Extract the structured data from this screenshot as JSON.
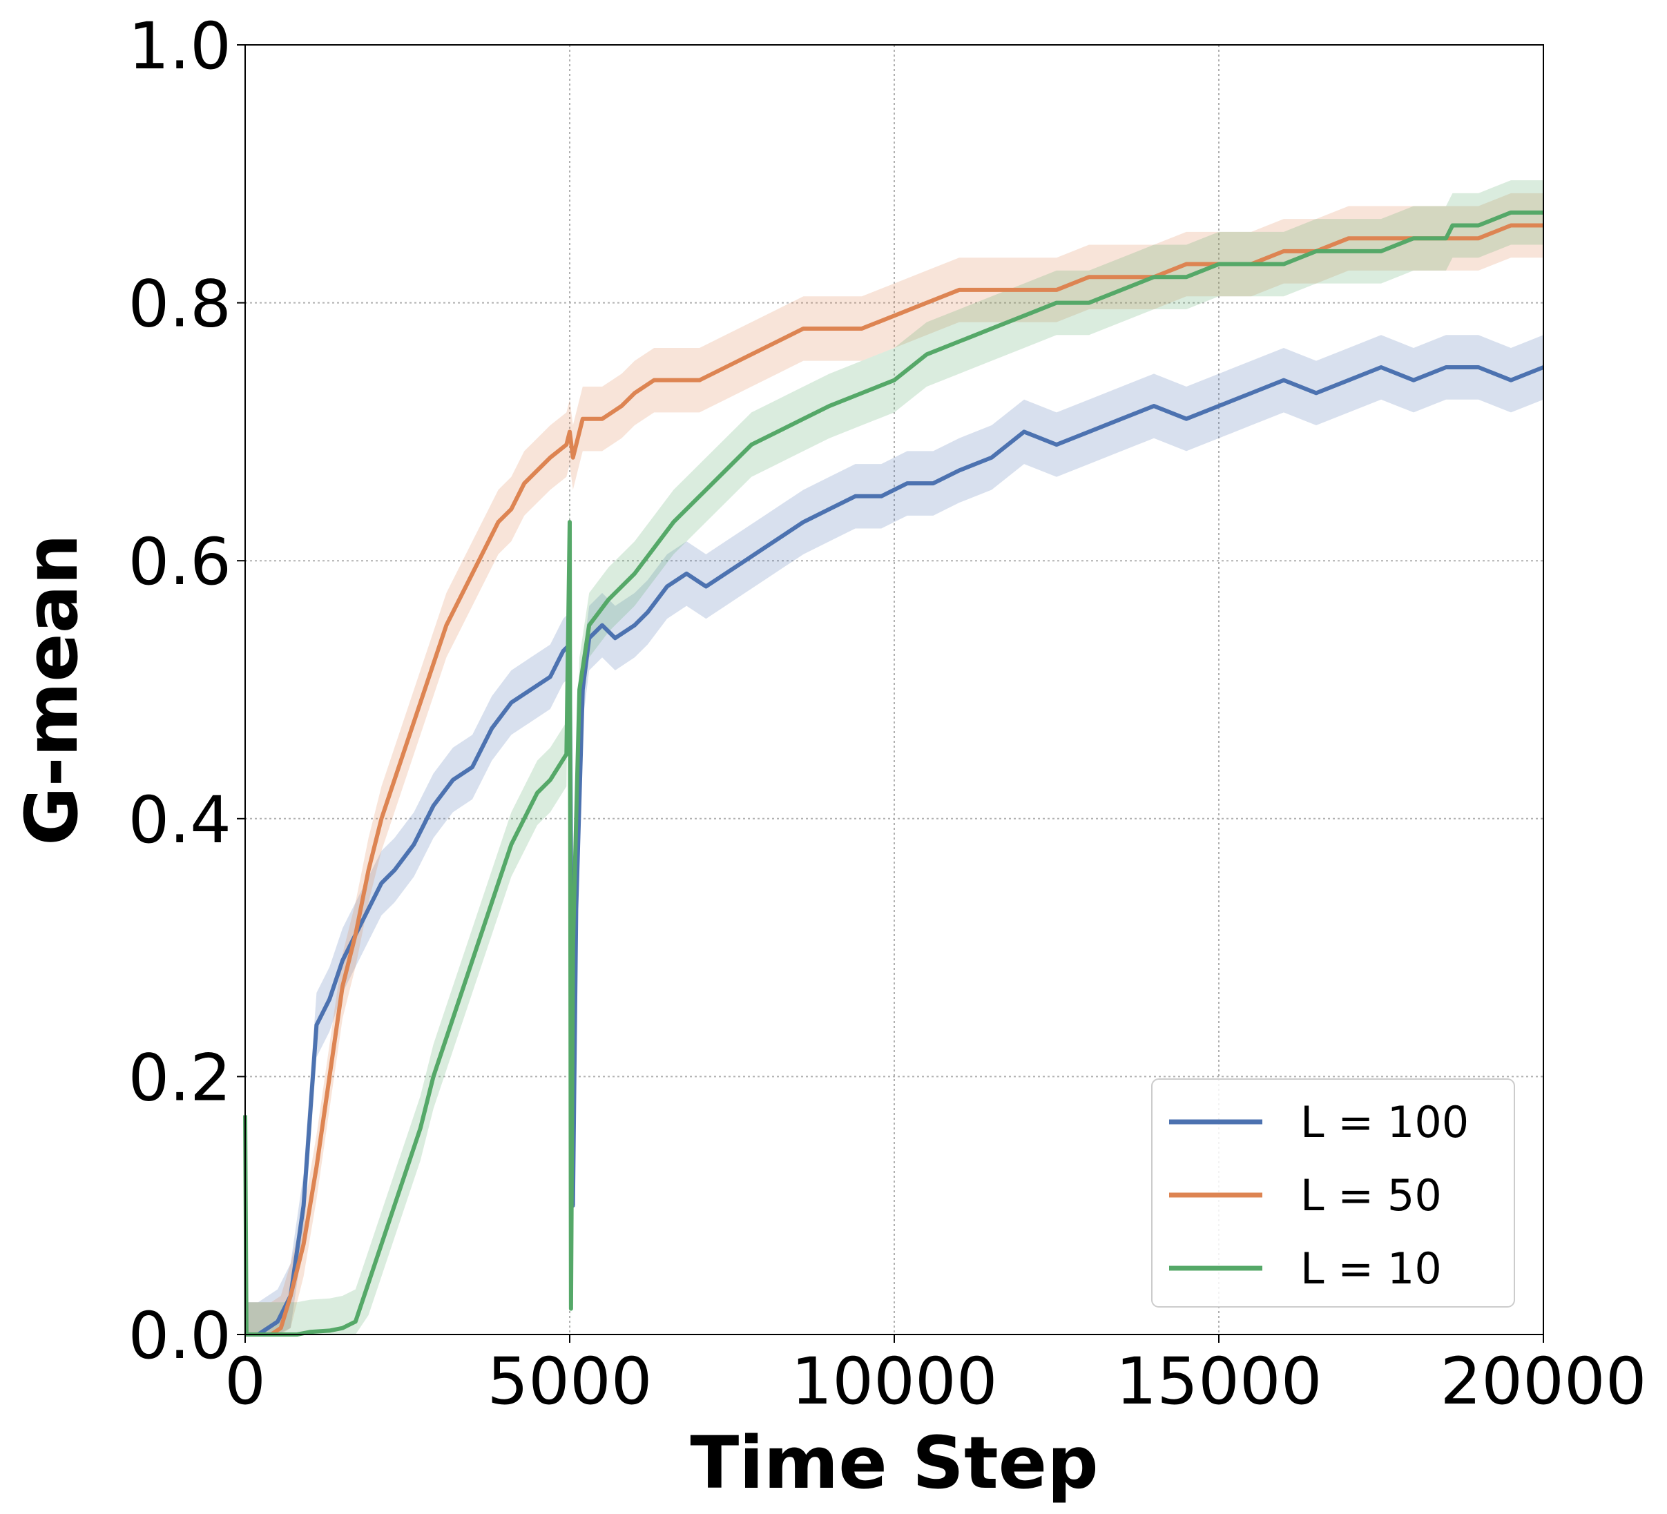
{
  "chart_data": {
    "type": "line",
    "xlabel": "Time Step",
    "ylabel": "G-mean",
    "xlim": [
      0,
      20000
    ],
    "ylim": [
      0,
      1.0
    ],
    "x_ticks": [
      "0",
      "5000",
      "10000",
      "15000",
      "20000"
    ],
    "y_ticks": [
      "0.0",
      "0.2",
      "0.4",
      "0.6",
      "0.8",
      "1.0"
    ],
    "grid": true,
    "legend_position": "bottom-right",
    "series": [
      {
        "name": "L = 100",
        "color": "#4c72b0",
        "band": 0.025,
        "points": [
          [
            0,
            0
          ],
          [
            200,
            0
          ],
          [
            500,
            0.01
          ],
          [
            700,
            0.03
          ],
          [
            900,
            0.1
          ],
          [
            1000,
            0.17
          ],
          [
            1100,
            0.24
          ],
          [
            1300,
            0.26
          ],
          [
            1500,
            0.29
          ],
          [
            1700,
            0.31
          ],
          [
            1900,
            0.33
          ],
          [
            2100,
            0.35
          ],
          [
            2300,
            0.36
          ],
          [
            2600,
            0.38
          ],
          [
            2900,
            0.41
          ],
          [
            3200,
            0.43
          ],
          [
            3500,
            0.44
          ],
          [
            3800,
            0.47
          ],
          [
            4100,
            0.49
          ],
          [
            4400,
            0.5
          ],
          [
            4700,
            0.51
          ],
          [
            4900,
            0.53
          ],
          [
            5000,
            0.535
          ],
          [
            5050,
            0.1
          ],
          [
            5100,
            0.33
          ],
          [
            5200,
            0.5
          ],
          [
            5300,
            0.54
          ],
          [
            5500,
            0.55
          ],
          [
            5700,
            0.54
          ],
          [
            6000,
            0.55
          ],
          [
            6200,
            0.56
          ],
          [
            6500,
            0.58
          ],
          [
            6800,
            0.59
          ],
          [
            7100,
            0.58
          ],
          [
            7400,
            0.59
          ],
          [
            7700,
            0.6
          ],
          [
            8000,
            0.61
          ],
          [
            8300,
            0.62
          ],
          [
            8600,
            0.63
          ],
          [
            9000,
            0.64
          ],
          [
            9400,
            0.65
          ],
          [
            9800,
            0.65
          ],
          [
            10200,
            0.66
          ],
          [
            10600,
            0.66
          ],
          [
            11000,
            0.67
          ],
          [
            11500,
            0.68
          ],
          [
            12000,
            0.7
          ],
          [
            12500,
            0.69
          ],
          [
            13000,
            0.7
          ],
          [
            13500,
            0.71
          ],
          [
            14000,
            0.72
          ],
          [
            14500,
            0.71
          ],
          [
            15000,
            0.72
          ],
          [
            15500,
            0.73
          ],
          [
            16000,
            0.74
          ],
          [
            16500,
            0.73
          ],
          [
            17000,
            0.74
          ],
          [
            17500,
            0.75
          ],
          [
            18000,
            0.74
          ],
          [
            18500,
            0.75
          ],
          [
            19000,
            0.75
          ],
          [
            19500,
            0.74
          ],
          [
            20000,
            0.75
          ]
        ]
      },
      {
        "name": "L = 50",
        "color": "#dd8452",
        "band": 0.025,
        "points": [
          [
            0,
            0
          ],
          [
            400,
            0
          ],
          [
            550,
            0.005
          ],
          [
            700,
            0.03
          ],
          [
            900,
            0.07
          ],
          [
            1100,
            0.13
          ],
          [
            1300,
            0.2
          ],
          [
            1500,
            0.27
          ],
          [
            1700,
            0.31
          ],
          [
            1900,
            0.36
          ],
          [
            2100,
            0.4
          ],
          [
            2300,
            0.43
          ],
          [
            2500,
            0.46
          ],
          [
            2700,
            0.49
          ],
          [
            2900,
            0.52
          ],
          [
            3100,
            0.55
          ],
          [
            3300,
            0.57
          ],
          [
            3500,
            0.59
          ],
          [
            3700,
            0.61
          ],
          [
            3900,
            0.63
          ],
          [
            4100,
            0.64
          ],
          [
            4300,
            0.66
          ],
          [
            4500,
            0.67
          ],
          [
            4700,
            0.68
          ],
          [
            4950,
            0.69
          ],
          [
            5000,
            0.7
          ],
          [
            5050,
            0.68
          ],
          [
            5200,
            0.71
          ],
          [
            5500,
            0.71
          ],
          [
            5800,
            0.72
          ],
          [
            6000,
            0.73
          ],
          [
            6300,
            0.74
          ],
          [
            6600,
            0.74
          ],
          [
            7000,
            0.74
          ],
          [
            7400,
            0.75
          ],
          [
            7800,
            0.76
          ],
          [
            8200,
            0.77
          ],
          [
            8600,
            0.78
          ],
          [
            9000,
            0.78
          ],
          [
            9500,
            0.78
          ],
          [
            10000,
            0.79
          ],
          [
            10500,
            0.8
          ],
          [
            11000,
            0.81
          ],
          [
            11500,
            0.81
          ],
          [
            12000,
            0.81
          ],
          [
            12500,
            0.81
          ],
          [
            13000,
            0.82
          ],
          [
            13500,
            0.82
          ],
          [
            14000,
            0.82
          ],
          [
            14500,
            0.83
          ],
          [
            15000,
            0.83
          ],
          [
            15500,
            0.83
          ],
          [
            16000,
            0.84
          ],
          [
            16500,
            0.84
          ],
          [
            17000,
            0.85
          ],
          [
            17500,
            0.85
          ],
          [
            18000,
            0.85
          ],
          [
            18500,
            0.85
          ],
          [
            19000,
            0.85
          ],
          [
            19500,
            0.86
          ],
          [
            20000,
            0.86
          ]
        ]
      },
      {
        "name": "L = 10",
        "color": "#55a868",
        "band": 0.025,
        "points": [
          [
            0,
            0.17
          ],
          [
            20,
            0
          ],
          [
            800,
            0
          ],
          [
            1000,
            0.002
          ],
          [
            1300,
            0.003
          ],
          [
            1500,
            0.005
          ],
          [
            1700,
            0.01
          ],
          [
            1900,
            0.04
          ],
          [
            2100,
            0.07
          ],
          [
            2300,
            0.1
          ],
          [
            2500,
            0.13
          ],
          [
            2700,
            0.16
          ],
          [
            2900,
            0.2
          ],
          [
            3100,
            0.23
          ],
          [
            3300,
            0.26
          ],
          [
            3500,
            0.29
          ],
          [
            3700,
            0.32
          ],
          [
            3900,
            0.35
          ],
          [
            4100,
            0.38
          ],
          [
            4300,
            0.4
          ],
          [
            4500,
            0.42
          ],
          [
            4700,
            0.43
          ],
          [
            4950,
            0.45
          ],
          [
            5000,
            0.63
          ],
          [
            5020,
            0.02
          ],
          [
            5050,
            0.3
          ],
          [
            5150,
            0.5
          ],
          [
            5300,
            0.55
          ],
          [
            5600,
            0.57
          ],
          [
            6000,
            0.59
          ],
          [
            6300,
            0.61
          ],
          [
            6600,
            0.63
          ],
          [
            7000,
            0.65
          ],
          [
            7400,
            0.67
          ],
          [
            7800,
            0.69
          ],
          [
            8200,
            0.7
          ],
          [
            8600,
            0.71
          ],
          [
            9000,
            0.72
          ],
          [
            9500,
            0.73
          ],
          [
            10000,
            0.74
          ],
          [
            10500,
            0.76
          ],
          [
            11000,
            0.77
          ],
          [
            11500,
            0.78
          ],
          [
            12000,
            0.79
          ],
          [
            12500,
            0.8
          ],
          [
            13000,
            0.8
          ],
          [
            13500,
            0.81
          ],
          [
            14000,
            0.82
          ],
          [
            14500,
            0.82
          ],
          [
            15000,
            0.83
          ],
          [
            15500,
            0.83
          ],
          [
            16000,
            0.83
          ],
          [
            16500,
            0.84
          ],
          [
            17000,
            0.84
          ],
          [
            17500,
            0.84
          ],
          [
            18000,
            0.85
          ],
          [
            18500,
            0.85
          ],
          [
            18600,
            0.86
          ],
          [
            19000,
            0.86
          ],
          [
            19500,
            0.87
          ],
          [
            20000,
            0.87
          ]
        ]
      }
    ]
  }
}
